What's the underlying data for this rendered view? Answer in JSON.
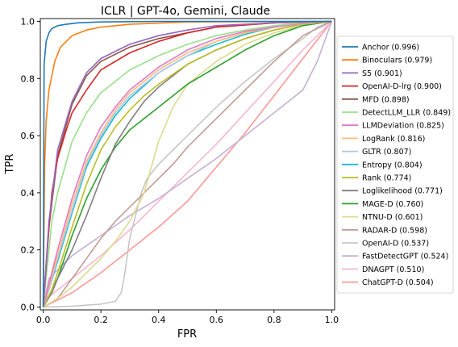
{
  "chart_data": {
    "type": "line",
    "title": "ICLR | GPT-4o, Gemini, Claude",
    "xlabel": "FPR",
    "ylabel": "TPR",
    "xlim": [
      -0.01,
      1.01
    ],
    "ylim": [
      -0.01,
      1.01
    ],
    "xticks": [
      "0.0",
      "0.2",
      "0.4",
      "0.6",
      "0.8",
      "1.0"
    ],
    "yticks": [
      "0.0",
      "0.2",
      "0.4",
      "0.6",
      "0.8",
      "1.0"
    ],
    "grid": false,
    "legend_position": "right",
    "series": [
      {
        "name": "Anchor (0.996)",
        "color": "#1f77b4",
        "x": [
          0,
          0.003,
          0.01,
          0.02,
          0.03,
          0.05,
          0.08,
          0.12,
          0.2,
          0.4,
          1.0
        ],
        "y": [
          0,
          0.85,
          0.93,
          0.96,
          0.975,
          0.985,
          0.99,
          0.995,
          0.998,
          1.0,
          1.0
        ]
      },
      {
        "name": "Binoculars (0.979)",
        "color": "#ff7f0e",
        "x": [
          0,
          0.005,
          0.01,
          0.02,
          0.04,
          0.06,
          0.1,
          0.15,
          0.2,
          0.3,
          0.5,
          1.0
        ],
        "y": [
          0,
          0.5,
          0.65,
          0.76,
          0.86,
          0.91,
          0.95,
          0.97,
          0.98,
          0.99,
          0.998,
          1.0
        ]
      },
      {
        "name": "S5 (0.901)",
        "color": "#9467bd",
        "x": [
          0,
          0.02,
          0.05,
          0.1,
          0.15,
          0.2,
          0.3,
          0.4,
          0.5,
          0.6,
          0.8,
          1.0
        ],
        "y": [
          0,
          0.3,
          0.55,
          0.72,
          0.82,
          0.87,
          0.92,
          0.95,
          0.97,
          0.985,
          0.995,
          1.0
        ]
      },
      {
        "name": "OpenAI-D-lrg (0.900)",
        "color": "#d62728",
        "x": [
          0,
          0.01,
          0.03,
          0.05,
          0.08,
          0.1,
          0.15,
          0.2,
          0.3,
          0.4,
          0.5,
          0.6,
          0.8,
          1.0
        ],
        "y": [
          0,
          0.15,
          0.4,
          0.52,
          0.62,
          0.68,
          0.76,
          0.83,
          0.89,
          0.93,
          0.96,
          0.98,
          0.995,
          1.0
        ]
      },
      {
        "name": "MFD (0.898)",
        "color": "#8c564b",
        "x": [
          0,
          0.02,
          0.05,
          0.1,
          0.15,
          0.2,
          0.3,
          0.4,
          0.5,
          0.6,
          0.8,
          1.0
        ],
        "y": [
          0,
          0.28,
          0.53,
          0.71,
          0.81,
          0.86,
          0.91,
          0.94,
          0.96,
          0.98,
          0.995,
          1.0
        ]
      },
      {
        "name": "DetectLLM_LLR (0.849)",
        "color": "#98df8a",
        "x": [
          0,
          0.01,
          0.03,
          0.05,
          0.1,
          0.15,
          0.2,
          0.3,
          0.4,
          0.5,
          0.6,
          0.7,
          0.8,
          0.9,
          1.0
        ],
        "y": [
          0,
          0.1,
          0.3,
          0.4,
          0.58,
          0.68,
          0.75,
          0.83,
          0.88,
          0.92,
          0.95,
          0.97,
          0.985,
          0.995,
          1.0
        ]
      },
      {
        "name": "LLMDeviation (0.825)",
        "color": "#e377c2",
        "x": [
          0,
          0.02,
          0.05,
          0.1,
          0.15,
          0.2,
          0.25,
          0.3,
          0.4,
          0.5,
          0.6,
          0.7,
          0.8,
          0.9,
          1.0
        ],
        "y": [
          0,
          0.08,
          0.2,
          0.38,
          0.53,
          0.63,
          0.7,
          0.76,
          0.84,
          0.9,
          0.94,
          0.965,
          0.98,
          0.993,
          1.0
        ]
      },
      {
        "name": "LogRank (0.816)",
        "color": "#ffbb78",
        "x": [
          0,
          0.02,
          0.05,
          0.1,
          0.15,
          0.2,
          0.25,
          0.3,
          0.4,
          0.5,
          0.6,
          0.7,
          0.8,
          0.9,
          1.0
        ],
        "y": [
          0,
          0.07,
          0.18,
          0.36,
          0.51,
          0.61,
          0.69,
          0.75,
          0.83,
          0.89,
          0.93,
          0.96,
          0.98,
          0.992,
          1.0
        ]
      },
      {
        "name": "GLTR (0.807)",
        "color": "#aec7e8",
        "x": [
          0,
          0.02,
          0.05,
          0.1,
          0.15,
          0.2,
          0.25,
          0.3,
          0.4,
          0.5,
          0.6,
          0.7,
          0.8,
          0.9,
          1.0
        ],
        "y": [
          0,
          0.06,
          0.17,
          0.34,
          0.5,
          0.6,
          0.68,
          0.74,
          0.82,
          0.88,
          0.93,
          0.96,
          0.98,
          0.992,
          1.0
        ]
      },
      {
        "name": "Entropy (0.804)",
        "color": "#17becf",
        "x": [
          0,
          0.02,
          0.05,
          0.1,
          0.15,
          0.2,
          0.25,
          0.3,
          0.4,
          0.5,
          0.6,
          0.7,
          0.8,
          0.9,
          1.0
        ],
        "y": [
          0,
          0.06,
          0.16,
          0.33,
          0.49,
          0.59,
          0.67,
          0.73,
          0.82,
          0.88,
          0.92,
          0.955,
          0.98,
          0.992,
          1.0
        ]
      },
      {
        "name": "Rank (0.774)",
        "color": "#bcbd22",
        "x": [
          0,
          0.03,
          0.05,
          0.1,
          0.15,
          0.2,
          0.25,
          0.3,
          0.35,
          0.4,
          0.5,
          0.6,
          0.7,
          0.8,
          0.9,
          1.0
        ],
        "y": [
          0,
          0.06,
          0.12,
          0.28,
          0.43,
          0.55,
          0.63,
          0.69,
          0.74,
          0.78,
          0.85,
          0.9,
          0.94,
          0.97,
          0.99,
          1.0
        ]
      },
      {
        "name": "Loglikelihood (0.771)",
        "color": "#7f7f7f",
        "x": [
          0,
          0.03,
          0.05,
          0.1,
          0.15,
          0.2,
          0.25,
          0.3,
          0.35,
          0.4,
          0.5,
          0.6,
          0.7,
          0.8,
          0.9,
          1.0
        ],
        "y": [
          0,
          0.05,
          0.1,
          0.2,
          0.32,
          0.45,
          0.57,
          0.65,
          0.72,
          0.77,
          0.85,
          0.9,
          0.94,
          0.97,
          0.99,
          1.0
        ]
      },
      {
        "name": "MAGE-D (0.760)",
        "color": "#2ca02c",
        "x": [
          0,
          0.05,
          0.1,
          0.15,
          0.2,
          0.25,
          0.3,
          0.35,
          0.4,
          0.45,
          0.5,
          0.6,
          0.7,
          0.8,
          0.9,
          1.0
        ],
        "y": [
          0,
          0.1,
          0.25,
          0.38,
          0.48,
          0.56,
          0.62,
          0.66,
          0.7,
          0.74,
          0.78,
          0.84,
          0.9,
          0.95,
          0.985,
          1.0
        ]
      },
      {
        "name": "NTNU-D (0.601)",
        "color": "#dbdb8d",
        "x": [
          0,
          0.05,
          0.1,
          0.15,
          0.2,
          0.25,
          0.3,
          0.35,
          0.4,
          0.45,
          0.5,
          0.6,
          0.7,
          0.8,
          0.9,
          1.0
        ],
        "y": [
          0,
          0.03,
          0.07,
          0.12,
          0.17,
          0.23,
          0.3,
          0.4,
          0.58,
          0.7,
          0.78,
          0.86,
          0.92,
          0.96,
          0.985,
          1.0
        ]
      },
      {
        "name": "RADAR-D (0.598)",
        "color": "#c49c94",
        "x": [
          0,
          0.05,
          0.1,
          0.15,
          0.2,
          0.25,
          0.3,
          0.35,
          0.4,
          0.45,
          0.5,
          0.6,
          0.7,
          0.8,
          0.9,
          1.0
        ],
        "y": [
          0,
          0.03,
          0.1,
          0.17,
          0.24,
          0.3,
          0.35,
          0.4,
          0.45,
          0.5,
          0.56,
          0.66,
          0.76,
          0.86,
          0.95,
          1.0
        ]
      },
      {
        "name": "OpenAI-D (0.537)",
        "color": "#c7c7c7",
        "x": [
          0,
          0.1,
          0.2,
          0.25,
          0.27,
          0.28,
          0.29,
          0.3,
          0.32,
          0.34,
          0.36,
          0.4,
          0.5,
          0.6,
          0.7,
          0.8,
          0.9,
          0.95,
          1.0
        ],
        "y": [
          0,
          0.003,
          0.01,
          0.02,
          0.05,
          0.1,
          0.17,
          0.24,
          0.32,
          0.4,
          0.45,
          0.5,
          0.6,
          0.7,
          0.79,
          0.87,
          0.94,
          0.98,
          1.0
        ]
      },
      {
        "name": "FastDetectGPT (0.524)",
        "color": "#c5b0d5",
        "x": [
          0,
          0.02,
          0.1,
          0.2,
          0.3,
          0.4,
          0.5,
          0.6,
          0.7,
          0.8,
          0.9,
          0.95,
          1.0
        ],
        "y": [
          0,
          0.1,
          0.18,
          0.25,
          0.32,
          0.38,
          0.45,
          0.52,
          0.6,
          0.68,
          0.76,
          0.86,
          1.0
        ]
      },
      {
        "name": "DNAGPT (0.510)",
        "color": "#f7b6d2",
        "x": [
          0,
          0.01,
          0.05,
          0.1,
          0.2,
          0.3,
          0.4,
          0.5,
          0.6,
          0.7,
          0.8,
          0.9,
          1.0
        ],
        "y": [
          0,
          0.03,
          0.06,
          0.1,
          0.18,
          0.27,
          0.37,
          0.47,
          0.57,
          0.68,
          0.79,
          0.9,
          1.0
        ]
      },
      {
        "name": "ChatGPT-D (0.504)",
        "color": "#ff9896",
        "x": [
          0,
          0.1,
          0.2,
          0.3,
          0.4,
          0.5,
          0.6,
          0.7,
          0.8,
          0.9,
          1.0
        ],
        "y": [
          0,
          0.05,
          0.12,
          0.2,
          0.28,
          0.37,
          0.49,
          0.61,
          0.74,
          0.87,
          1.0
        ]
      }
    ]
  }
}
